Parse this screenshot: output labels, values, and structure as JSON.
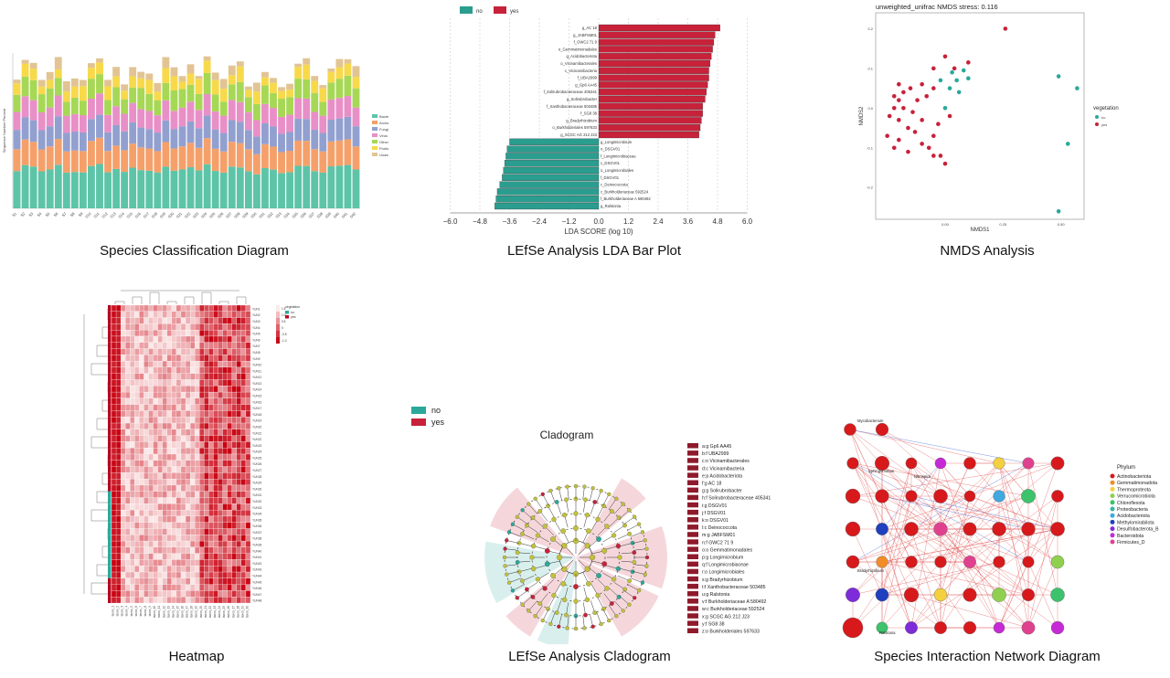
{
  "captions": {
    "species": "Species Classification Diagram",
    "lda": "LEfSe Analysis LDA Bar Plot",
    "nmds": "NMDS Analysis",
    "heatmap": "Heatmap",
    "cladogram": "LEfSe Analysis Cladogram",
    "network": "Species Interaction Network Diagram"
  },
  "chart_data": [
    {
      "id": "species",
      "type": "bar",
      "stacked": true,
      "sample_count": 42,
      "legend": [
        "Bacteria",
        "Archaea",
        "Fungi",
        "Virus",
        "Other",
        "Protist",
        "Unassigned"
      ],
      "colors": [
        "#5dc4a8",
        "#f5a06a",
        "#92a0d0",
        "#e98fc7",
        "#a6d855",
        "#f7d94a",
        "#e2c494"
      ],
      "ylabel": "Sequence Number Percent",
      "ylim": [
        0,
        1
      ]
    },
    {
      "id": "lda",
      "type": "bar",
      "legend": [
        "no",
        "yes"
      ],
      "colors": {
        "no": "#2a9d8f",
        "yes": "#c8213a"
      },
      "xlim": [
        -6,
        6
      ],
      "xticks": [
        "−6.0",
        "−4.8",
        "−3.6",
        "−2.4",
        "−1.2",
        "0.0",
        "1.2",
        "2.4",
        "3.6",
        "4.8",
        "6.0"
      ],
      "xlabel": "LDA SCORE (log 10)",
      "series": [
        {
          "name": "yes",
          "labels": [
            "g_AC 18",
            "g_JABFSM01",
            "f_GWC2 71 9",
            "o_Gemmatimonadales",
            "g_Acidobacteriota",
            "o_Vicinamibacterales",
            "c_Vicinamibacteria",
            "f_UBA2999",
            "g_Gp6 AA45",
            "f_Solirubrobacteraceae 405341",
            "g_Solirubrobacter",
            "f_Xanthobacteraceae 503485",
            "f_SG8 38",
            "g_Bradyrhizobium",
            "o_Burkholderiales 597633",
            "g_SCGC AG 212 J23"
          ],
          "values": [
            4.9,
            4.7,
            4.65,
            4.6,
            4.55,
            4.5,
            4.45,
            4.45,
            4.4,
            4.35,
            4.3,
            4.2,
            4.2,
            4.15,
            4.1,
            4.05
          ]
        },
        {
          "name": "no",
          "labels": [
            "g_Longimicrobium",
            "o_DSGV01",
            "f_Longimicrobiaceae",
            "c_DSGV01",
            "o_Longimicrobiales",
            "f_DSGV01",
            "c_Deinococcota",
            "c_Burkholderiaceae 592524",
            "f_Burkholderiaceae A 580492",
            "g_Ralstonia"
          ],
          "values": [
            -3.6,
            -3.7,
            -3.75,
            -3.8,
            -3.85,
            -3.9,
            -4.0,
            -4.1,
            -4.15,
            -4.2
          ]
        }
      ]
    },
    {
      "id": "nmds",
      "type": "scatter",
      "title": "unweighted_unifrac NMDS stress: 0.116",
      "xlabel": "NMDS1",
      "ylabel": "NMDS2",
      "xlim": [
        -0.3,
        0.6
      ],
      "ylim": [
        -0.28,
        0.24
      ],
      "xticks": [
        "0.00",
        "0.25",
        "0.50"
      ],
      "yticks": [
        "0.2",
        "0.1",
        "0.0",
        "-0.1",
        "-0.2"
      ],
      "legend_title": "vegetation",
      "legend": [
        "no",
        "yes"
      ],
      "colors": {
        "no": "#2aa89a",
        "yes": "#c8213a"
      },
      "series": [
        {
          "name": "no",
          "points": [
            [
              0.03,
              0.09
            ],
            [
              0.08,
              0.095
            ],
            [
              0.1,
              0.075
            ],
            [
              0.05,
              0.07
            ],
            [
              -0.02,
              0.07
            ],
            [
              0.02,
              0.05
            ],
            [
              0.06,
              0.04
            ],
            [
              0.0,
              0.0
            ],
            [
              0.49,
              0.08
            ],
            [
              0.57,
              0.05
            ],
            [
              0.53,
              -0.09
            ],
            [
              0.49,
              -0.26
            ]
          ]
        },
        {
          "name": "yes",
          "points": [
            [
              0.26,
              0.2
            ],
            [
              0.0,
              0.13
            ],
            [
              0.1,
              0.115
            ],
            [
              0.04,
              0.1
            ],
            [
              -0.05,
              0.1
            ],
            [
              -0.1,
              0.06
            ],
            [
              -0.2,
              0.06
            ],
            [
              -0.15,
              0.05
            ],
            [
              -0.18,
              0.04
            ],
            [
              -0.22,
              0.03
            ],
            [
              -0.2,
              0.02
            ],
            [
              -0.12,
              0.02
            ],
            [
              -0.08,
              0.03
            ],
            [
              -0.05,
              0.05
            ],
            [
              -0.22,
              0.0
            ],
            [
              -0.18,
              0.0
            ],
            [
              -0.14,
              -0.01
            ],
            [
              -0.24,
              -0.02
            ],
            [
              -0.2,
              -0.03
            ],
            [
              -0.1,
              -0.03
            ],
            [
              -0.16,
              -0.05
            ],
            [
              -0.25,
              -0.07
            ],
            [
              -0.2,
              -0.08
            ],
            [
              -0.13,
              -0.06
            ],
            [
              -0.1,
              -0.09
            ],
            [
              -0.05,
              -0.07
            ],
            [
              -0.22,
              -0.1
            ],
            [
              -0.16,
              -0.11
            ],
            [
              -0.05,
              -0.12
            ],
            [
              -0.02,
              -0.12
            ],
            [
              0.0,
              -0.14
            ],
            [
              -0.07,
              -0.1
            ],
            [
              0.02,
              -0.02
            ],
            [
              -0.03,
              -0.04
            ]
          ]
        }
      ]
    },
    {
      "id": "heatmap",
      "type": "heatmap",
      "rows": 48,
      "cols": 30,
      "color_low": "#fbeaea",
      "color_high": "#c8000f",
      "legend_title": "vegetation",
      "legend": [
        "no",
        "yes"
      ],
      "scale_ticks": [
        "1.5",
        "1.0",
        "0.5",
        "0",
        "-0.5",
        "-1.0"
      ]
    },
    {
      "id": "cladogram",
      "type": "other",
      "title": "Cladogram",
      "legend": [
        "no",
        "yes"
      ],
      "colors": {
        "no": "#2aa89a",
        "yes": "#c8213a"
      },
      "labels": [
        "a:g  Gp6 AA45",
        "b:f  UBA2999",
        "c:o  Vicinamibacterales",
        "d:c  Vicinamibacteria",
        "e:p  Acidobacteriota",
        "f:g  AC 18",
        "g:g  Solirubrobacter",
        "h:f  Solirubrobacteraceae 405341",
        "i:g  DSGV01",
        "j:f  DSGV01",
        "k:o  DSGV01",
        "l:c  Deinococcota",
        "m:g  JABFSM01",
        "n:f  GWC2 71 9",
        "o:o  Gemmatimonadales",
        "p:g  Longimicrobium",
        "q:f  Longimicrobiaceae",
        "r:o  Longimicrobiales",
        "s:g  Bradyrhizobium",
        "t:f  Xanthobacteraceae 503485",
        "u:g  Ralstonia",
        "v:f  Burkholderiaceae A 580492",
        "w:c  Burkholderiaceae 592524",
        "x:g  SCGC AG 212 J23",
        "y:f  SG8 38",
        "z:o  Burkholderiales 597633"
      ]
    },
    {
      "id": "network",
      "type": "other",
      "legend_title": "Phylum",
      "legend": [
        "Actinobacteriota",
        "Gemmatimonadota",
        "Thermoproteota",
        "Verrucomicrobiota",
        "Chloroflexota",
        "Proteobacteria",
        "Acidobacteriota",
        "Methylomirabilota",
        "Desulfobacterota_B",
        "Bacteroidota",
        "Firmicutes_D"
      ],
      "colors": [
        "#d7191c",
        "#f28c28",
        "#f4d03f",
        "#8fd14f",
        "#3cc36b",
        "#34b5a2",
        "#3fa9e0",
        "#1f3fbf",
        "#7e2bd9",
        "#c62ad6",
        "#e0418f"
      ],
      "node_labels": [
        "Mycobacterium",
        "Sphingomonas",
        "Nitrospira",
        "Bradyrhizobium",
        "Ralstonia"
      ]
    }
  ]
}
